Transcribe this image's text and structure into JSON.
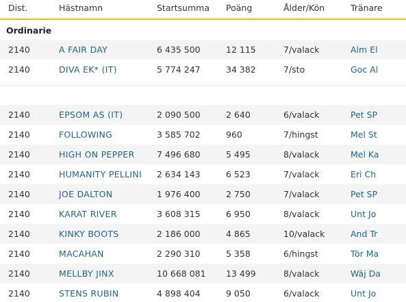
{
  "header": {
    "dist": "Dist.",
    "name": "Hästnamn",
    "start": "Startsumma",
    "points": "Poäng",
    "age_sex": "Ålder/Kön",
    "trainer": "Tränare"
  },
  "section_title": "Ordinarie",
  "rows": [
    {
      "dist": "2140",
      "name": "A FAIR DAY",
      "start": "6 435 500",
      "points": "12 115",
      "age_sex": "7/valack",
      "trainer": "Alm El"
    },
    {
      "dist": "2140",
      "name": "DIVA EK* (IT)",
      "start": "5 774 247",
      "points": "34 382",
      "age_sex": "7/sto",
      "trainer": "Goc Al"
    },
    {
      "dist": "2140",
      "name": "EPSOM AS (IT)",
      "start": "2 090 500",
      "points": "2 640",
      "age_sex": "6/valack",
      "trainer": "Pet SP"
    },
    {
      "dist": "2140",
      "name": "FOLLOWING",
      "start": "3 585 702",
      "points": "960",
      "age_sex": "7/hingst",
      "trainer": "Mel St"
    },
    {
      "dist": "2140",
      "name": "HIGH ON PEPPER",
      "start": "7 496 680",
      "points": "5 495",
      "age_sex": "8/valack",
      "trainer": "Mel Ka"
    },
    {
      "dist": "2140",
      "name": "HUMANITY PELLINI",
      "start": "2 634 143",
      "points": "6 523",
      "age_sex": "7/valack",
      "trainer": "Eri Ch"
    },
    {
      "dist": "2140",
      "name": "JOE DALTON",
      "start": "1 976 400",
      "points": "2 750",
      "age_sex": "7/valack",
      "trainer": "Pet SP"
    },
    {
      "dist": "2140",
      "name": "KARAT RIVER",
      "start": "3 608 315",
      "points": "6 950",
      "age_sex": "8/valack",
      "trainer": "Unt Jo"
    },
    {
      "dist": "2140",
      "name": "KINKY BOOTS",
      "start": "2 186 000",
      "points": "4 865",
      "age_sex": "10/valack",
      "trainer": "And Tr"
    },
    {
      "dist": "2140",
      "name": "MACAHAN",
      "start": "2 290 310",
      "points": "5 358",
      "age_sex": "6/hingst",
      "trainer": "Tör Ma"
    },
    {
      "dist": "2140",
      "name": "MELLBY JINX",
      "start": "10 668 081",
      "points": "13 499",
      "age_sex": "8/valack",
      "trainer": "Wäj Da"
    },
    {
      "dist": "2140",
      "name": "STENS RUBIN",
      "start": "4 898 404",
      "points": "9 050",
      "age_sex": "6/valack",
      "trainer": "Unt Jo"
    }
  ]
}
